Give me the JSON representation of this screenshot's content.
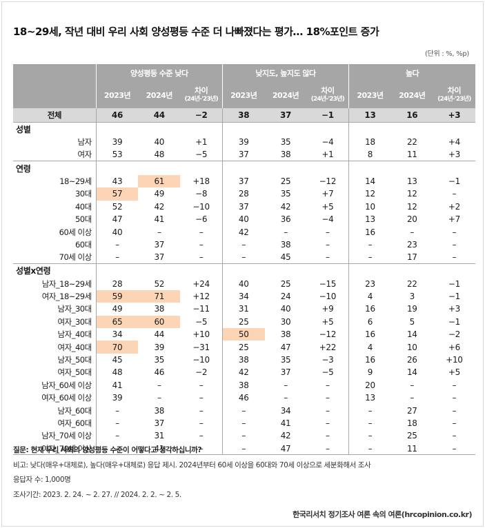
{
  "title": "18~29세, 작년 대비 우리 사회 양성평등 수준 더 나빠졌다는 평가… 18%포인트 증가",
  "unit_note": "(단위 : %, %p)",
  "groups": [
    "양성평등 수준 낮다",
    "낮지도, 높지도 않다",
    "높다"
  ],
  "sub_headers": [
    "2023년",
    "2024년",
    "차이",
    "(24년-'23년)"
  ],
  "highlight_color": "#fbd5b5",
  "header_color": "#a6a6a6",
  "total": {
    "label": "전체",
    "values": [
      "46",
      "44",
      "−2",
      "38",
      "37",
      "−1",
      "13",
      "16",
      "+3"
    ]
  },
  "sections": [
    {
      "title": "성별",
      "rows": [
        {
          "label": "남자",
          "values": [
            "39",
            "40",
            "+1",
            "39",
            "35",
            "−4",
            "18",
            "22",
            "+4"
          ]
        },
        {
          "label": "여자",
          "values": [
            "53",
            "48",
            "−5",
            "37",
            "38",
            "+1",
            "8",
            "11",
            "+3"
          ]
        }
      ]
    },
    {
      "title": "연령",
      "rows": [
        {
          "label": "18~29세",
          "values": [
            "43",
            "61",
            "+18",
            "37",
            "25",
            "−12",
            "14",
            "13",
            "−1"
          ],
          "highlight": [
            1
          ]
        },
        {
          "label": "30대",
          "values": [
            "57",
            "49",
            "−8",
            "28",
            "35",
            "+7",
            "12",
            "12",
            "–"
          ],
          "highlight": [
            0
          ]
        },
        {
          "label": "40대",
          "values": [
            "52",
            "42",
            "−10",
            "37",
            "42",
            "+5",
            "10",
            "12",
            "+2"
          ]
        },
        {
          "label": "50대",
          "values": [
            "47",
            "41",
            "−6",
            "40",
            "36",
            "−4",
            "13",
            "20",
            "+7"
          ]
        },
        {
          "label": "60세 이상",
          "values": [
            "40",
            "–",
            "–",
            "42",
            "–",
            "–",
            "16",
            "–",
            "–"
          ]
        },
        {
          "label": "60대",
          "values": [
            "–",
            "37",
            "–",
            "–",
            "38",
            "–",
            "–",
            "23",
            "–"
          ]
        },
        {
          "label": "70세 이상",
          "values": [
            "–",
            "37",
            "–",
            "–",
            "45",
            "–",
            "–",
            "17",
            "–"
          ]
        }
      ]
    },
    {
      "title": "성별x연령",
      "rows": [
        {
          "label": "남자_18~29세",
          "values": [
            "28",
            "52",
            "+24",
            "40",
            "25",
            "−15",
            "23",
            "22",
            "−1"
          ]
        },
        {
          "label": "여자_18~29세",
          "values": [
            "59",
            "71",
            "+12",
            "34",
            "24",
            "−10",
            "4",
            "3",
            "−1"
          ],
          "highlight": [
            0,
            1
          ]
        },
        {
          "label": "남자_30대",
          "values": [
            "49",
            "38",
            "−11",
            "31",
            "40",
            "+9",
            "16",
            "19",
            "+3"
          ]
        },
        {
          "label": "여자_30대",
          "values": [
            "65",
            "60",
            "−5",
            "25",
            "30",
            "+5",
            "6",
            "5",
            "−1"
          ],
          "highlight": [
            0,
            1
          ]
        },
        {
          "label": "남자_40대",
          "values": [
            "34",
            "44",
            "+10",
            "50",
            "38",
            "−12",
            "16",
            "14",
            "−2"
          ],
          "highlight": [
            3
          ]
        },
        {
          "label": "여자_40대",
          "values": [
            "70",
            "39",
            "−31",
            "25",
            "47",
            "+22",
            "4",
            "10",
            "+6"
          ],
          "highlight": [
            0
          ]
        },
        {
          "label": "남자_50대",
          "values": [
            "45",
            "35",
            "−10",
            "38",
            "35",
            "−3",
            "16",
            "26",
            "+10"
          ]
        },
        {
          "label": "여자_50대",
          "values": [
            "48",
            "46",
            "−2",
            "42",
            "37",
            "−5",
            "9",
            "14",
            "+5"
          ]
        },
        {
          "label": "남자_60세 이상",
          "values": [
            "41",
            "–",
            "–",
            "38",
            "–",
            "–",
            "20",
            "–",
            "–"
          ]
        },
        {
          "label": "여자_60세 이상",
          "values": [
            "39",
            "–",
            "–",
            "46",
            "–",
            "–",
            "13",
            "–",
            "–"
          ]
        },
        {
          "label": "남자_60대",
          "values": [
            "–",
            "38",
            "–",
            "–",
            "34",
            "–",
            "–",
            "27",
            "–"
          ]
        },
        {
          "label": "여자_60대",
          "values": [
            "–",
            "37",
            "–",
            "–",
            "41",
            "–",
            "–",
            "18",
            "–"
          ]
        },
        {
          "label": "남자_70세 이상",
          "values": [
            "–",
            "31",
            "–",
            "–",
            "42",
            "–",
            "–",
            "25",
            "–"
          ]
        },
        {
          "label": "여자_70세 이상",
          "values": [
            "–",
            "41",
            "–",
            "–",
            "47",
            "–",
            "–",
            "11",
            "–"
          ]
        }
      ]
    }
  ],
  "notes": {
    "question": "질문: 현재 우리 사회의 양성평등 수준이 어떻다고 생각하십니까?",
    "comparison": "비고: 낮다(매우+대체로), 높다(매우+대체로) 응답 제시. 2024년부터 60세 이상을 60대와 70세 이상으로 세분화해서 조사",
    "respondents": "응답자 수: 1,000명",
    "period": "조사기간: 2023. 2. 24. ~ 2. 27. //  2024. 2. 2. ~ 2. 5."
  },
  "source": "한국리서치 정기조사 여론 속의 여론(hrcopinion.co.kr)"
}
